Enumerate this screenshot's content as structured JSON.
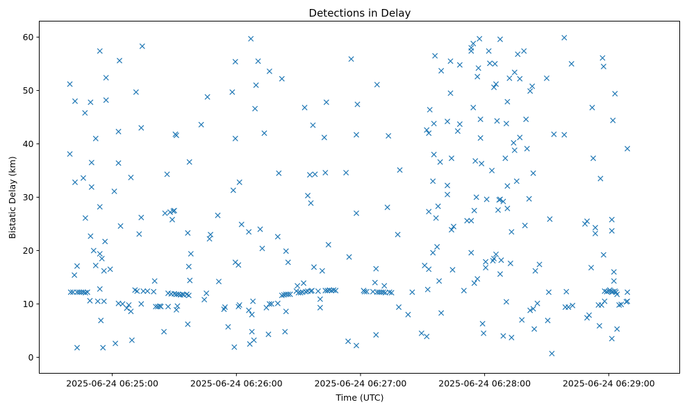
{
  "chart_data": {
    "type": "scatter",
    "title": "Detections in Delay",
    "xlabel": "Time (UTC)",
    "ylabel": "Bistatic Delay (km)",
    "marker": "x",
    "color": "#1f77b4",
    "x_unit": "seconds after 2025-06-24 06:24:00 UTC",
    "xlim": [
      -5.3,
      304.3
    ],
    "ylim": [
      -3.0,
      63.0
    ],
    "x_ticks": [
      {
        "value": 30,
        "label": "2025-06-24 06:25:00"
      },
      {
        "value": 90,
        "label": "2025-06-24 06:26:00"
      },
      {
        "value": 150,
        "label": "2025-06-24 06:27:00"
      },
      {
        "value": 210,
        "label": "2025-06-24 06:28:00"
      },
      {
        "value": 270,
        "label": "2025-06-24 06:29:00"
      }
    ],
    "y_ticks": [
      {
        "value": 0,
        "label": "0"
      },
      {
        "value": 10,
        "label": "10"
      },
      {
        "value": 20,
        "label": "20"
      },
      {
        "value": 30,
        "label": "30"
      },
      {
        "value": 40,
        "label": "40"
      },
      {
        "value": 50,
        "label": "50"
      },
      {
        "value": 60,
        "label": "60"
      }
    ],
    "points": [
      [
        9.5,
        51.2
      ],
      [
        9.5,
        38.1
      ],
      [
        9.9,
        12.2
      ],
      [
        11.0,
        12.2
      ],
      [
        11.7,
        15.4
      ],
      [
        12.0,
        32.8
      ],
      [
        12.0,
        48.0
      ],
      [
        13.0,
        12.2
      ],
      [
        13.0,
        1.8
      ],
      [
        13.0,
        17.1
      ],
      [
        14.0,
        12.2
      ],
      [
        15.0,
        12.2
      ],
      [
        16.0,
        33.6
      ],
      [
        16.0,
        12.2
      ],
      [
        16.8,
        45.8
      ],
      [
        17.0,
        26.1
      ],
      [
        17.0,
        12.1
      ],
      [
        18.0,
        12.2
      ],
      [
        19.2,
        10.6
      ],
      [
        19.5,
        47.8
      ],
      [
        19.5,
        22.7
      ],
      [
        20.0,
        36.5
      ],
      [
        20.0,
        31.9
      ],
      [
        21.0,
        20.0
      ],
      [
        22.0,
        41.0
      ],
      [
        22.0,
        17.2
      ],
      [
        23.0,
        10.5
      ],
      [
        24.0,
        57.4
      ],
      [
        24.0,
        28.2
      ],
      [
        24.0,
        19.4
      ],
      [
        24.0,
        12.8
      ],
      [
        24.5,
        6.9
      ],
      [
        25.0,
        18.5
      ],
      [
        25.5,
        1.8
      ],
      [
        26.0,
        10.5
      ],
      [
        26.0,
        16.2
      ],
      [
        26.5,
        21.7
      ],
      [
        27.0,
        52.4
      ],
      [
        27.0,
        48.2
      ],
      [
        29.0,
        16.5
      ],
      [
        31.0,
        31.1
      ],
      [
        31.5,
        2.6
      ],
      [
        33.0,
        42.3
      ],
      [
        33.0,
        36.4
      ],
      [
        33.0,
        10.1
      ],
      [
        33.5,
        55.6
      ],
      [
        34.0,
        24.6
      ],
      [
        35.0,
        10.0
      ],
      [
        37.0,
        9.2
      ],
      [
        38.0,
        9.8
      ],
      [
        39.0,
        33.7
      ],
      [
        39.0,
        8.6
      ],
      [
        39.5,
        3.2
      ],
      [
        41.0,
        12.6
      ],
      [
        41.5,
        49.7
      ],
      [
        42.0,
        12.4
      ],
      [
        43.0,
        23.1
      ],
      [
        44.0,
        43.0
      ],
      [
        44.0,
        26.2
      ],
      [
        44.0,
        10.0
      ],
      [
        44.5,
        58.3
      ],
      [
        45.0,
        12.4
      ],
      [
        47.0,
        12.4
      ],
      [
        50.0,
        12.3
      ],
      [
        50.5,
        14.3
      ],
      [
        51.0,
        9.5
      ],
      [
        52.0,
        9.5
      ],
      [
        53.0,
        9.6
      ],
      [
        53.5,
        9.5
      ],
      [
        55.0,
        4.8
      ],
      [
        55.5,
        27.0
      ],
      [
        56.5,
        34.3
      ],
      [
        57.0,
        9.5
      ],
      [
        57.0,
        12.0
      ],
      [
        58.0,
        27.2
      ],
      [
        58.5,
        11.9
      ],
      [
        59.0,
        25.8
      ],
      [
        59.5,
        27.4
      ],
      [
        60.0,
        11.9
      ],
      [
        60.0,
        27.5
      ],
      [
        60.5,
        41.8
      ],
      [
        61.0,
        41.6
      ],
      [
        61.0,
        8.9
      ],
      [
        61.0,
        11.8
      ],
      [
        61.5,
        9.6
      ],
      [
        62.0,
        11.8
      ],
      [
        63.0,
        11.7
      ],
      [
        64.0,
        11.8
      ],
      [
        64.5,
        11.7
      ],
      [
        66.0,
        11.8
      ],
      [
        66.5,
        23.3
      ],
      [
        66.5,
        6.2
      ],
      [
        67.0,
        11.6
      ],
      [
        67.0,
        17.0
      ],
      [
        67.3,
        36.6
      ],
      [
        67.5,
        14.4
      ],
      [
        68.0,
        19.4
      ],
      [
        73.0,
        43.6
      ],
      [
        74.5,
        10.8
      ],
      [
        75.5,
        12.0
      ],
      [
        76.0,
        48.8
      ],
      [
        77.0,
        22.2
      ],
      [
        77.5,
        23.0
      ],
      [
        81.0,
        26.6
      ],
      [
        81.5,
        14.2
      ],
      [
        84.0,
        9.0
      ],
      [
        84.5,
        9.4
      ],
      [
        86.0,
        5.7
      ],
      [
        88.0,
        49.7
      ],
      [
        88.5,
        31.3
      ],
      [
        89.0,
        1.9
      ],
      [
        89.5,
        55.4
      ],
      [
        89.5,
        41.0
      ],
      [
        89.5,
        17.8
      ],
      [
        91.0,
        9.5
      ],
      [
        91.0,
        17.3
      ],
      [
        91.5,
        32.8
      ],
      [
        91.5,
        9.8
      ],
      [
        92.5,
        24.9
      ],
      [
        96.0,
        8.8
      ],
      [
        96.0,
        23.5
      ],
      [
        96.5,
        2.5
      ],
      [
        97.0,
        59.7
      ],
      [
        97.5,
        4.8
      ],
      [
        97.5,
        8.0
      ],
      [
        98.0,
        10.5
      ],
      [
        98.5,
        3.2
      ],
      [
        99.5,
        51.0
      ],
      [
        99.0,
        46.6
      ],
      [
        100.5,
        55.5
      ],
      [
        101.5,
        24.0
      ],
      [
        102.5,
        20.4
      ],
      [
        103.5,
        42.0
      ],
      [
        104.5,
        9.3
      ],
      [
        105.5,
        4.3
      ],
      [
        106.0,
        10.0
      ],
      [
        107.0,
        10.0
      ],
      [
        106.0,
        53.6
      ],
      [
        110.0,
        22.6
      ],
      [
        110.0,
        10.1
      ],
      [
        110.5,
        34.5
      ],
      [
        112.0,
        11.6
      ],
      [
        112.0,
        52.2
      ],
      [
        113.0,
        11.7
      ],
      [
        113.5,
        4.8
      ],
      [
        114.0,
        8.6
      ],
      [
        114.0,
        11.8
      ],
      [
        114.0,
        19.9
      ],
      [
        115.0,
        17.8
      ],
      [
        115.0,
        11.8
      ],
      [
        116.0,
        11.8
      ],
      [
        119.0,
        12.4
      ],
      [
        119.5,
        13.4
      ],
      [
        120.0,
        12.1
      ],
      [
        121.0,
        12.1
      ],
      [
        122.0,
        12.2
      ],
      [
        122.5,
        13.9
      ],
      [
        123.0,
        46.8
      ],
      [
        123.5,
        12.3
      ],
      [
        124.5,
        12.4
      ],
      [
        124.5,
        30.3
      ],
      [
        125.5,
        34.2
      ],
      [
        126.0,
        12.4
      ],
      [
        126.0,
        28.9
      ],
      [
        126.5,
        12.5
      ],
      [
        127.0,
        43.5
      ],
      [
        127.5,
        16.9
      ],
      [
        128.0,
        34.3
      ],
      [
        129.5,
        12.4
      ],
      [
        130.5,
        10.9
      ],
      [
        130.5,
        9.3
      ],
      [
        131.5,
        16.2
      ],
      [
        132.5,
        41.2
      ],
      [
        133.0,
        12.5
      ],
      [
        133.5,
        47.8
      ],
      [
        133.0,
        34.6
      ],
      [
        134.0,
        12.5
      ],
      [
        135.0,
        12.6
      ],
      [
        134.5,
        21.1
      ],
      [
        136.0,
        12.5
      ],
      [
        137.0,
        12.6
      ],
      [
        138.0,
        12.5
      ],
      [
        143.0,
        34.6
      ],
      [
        144.0,
        3.0
      ],
      [
        144.5,
        18.8
      ],
      [
        145.5,
        55.9
      ],
      [
        148.0,
        27.0
      ],
      [
        148.0,
        2.2
      ],
      [
        148.0,
        41.7
      ],
      [
        148.5,
        47.4
      ],
      [
        151.5,
        12.5
      ],
      [
        152.0,
        12.3
      ],
      [
        153.0,
        12.3
      ],
      [
        156.0,
        12.3
      ],
      [
        157.0,
        14.0
      ],
      [
        157.5,
        4.2
      ],
      [
        157.5,
        16.6
      ],
      [
        158.0,
        12.2
      ],
      [
        159.0,
        12.2
      ],
      [
        160.0,
        12.2
      ],
      [
        158.0,
        51.1
      ],
      [
        161.0,
        12.2
      ],
      [
        161.5,
        13.4
      ],
      [
        162.0,
        12.1
      ],
      [
        163.0,
        28.1
      ],
      [
        163.5,
        41.5
      ],
      [
        164.0,
        12.2
      ],
      [
        165.0,
        12.1
      ],
      [
        168.0,
        23.0
      ],
      [
        168.5,
        9.4
      ],
      [
        169.0,
        35.1
      ],
      [
        173.0,
        8.0
      ],
      [
        175.0,
        12.2
      ],
      [
        179.5,
        4.5
      ],
      [
        181.0,
        17.2
      ],
      [
        182.0,
        3.9
      ],
      [
        182.5,
        12.7
      ],
      [
        182.0,
        42.6
      ],
      [
        183.0,
        27.3
      ],
      [
        183.0,
        16.5
      ],
      [
        183.0,
        42.0
      ],
      [
        183.5,
        46.4
      ],
      [
        185.0,
        33.0
      ],
      [
        185.0,
        19.6
      ],
      [
        185.5,
        43.8
      ],
      [
        185.5,
        38.0
      ],
      [
        186.0,
        56.5
      ],
      [
        186.5,
        26.1
      ],
      [
        187.0,
        20.7
      ],
      [
        187.5,
        28.3
      ],
      [
        188.0,
        14.3
      ],
      [
        188.5,
        36.6
      ],
      [
        189.0,
        8.3
      ],
      [
        189.0,
        53.7
      ],
      [
        192.0,
        44.2
      ],
      [
        192.0,
        32.2
      ],
      [
        192.0,
        30.5
      ],
      [
        193.5,
        55.5
      ],
      [
        193.5,
        49.5
      ],
      [
        194.0,
        37.3
      ],
      [
        194.0,
        23.9
      ],
      [
        194.5,
        16.4
      ],
      [
        195.0,
        24.5
      ],
      [
        197.0,
        42.4
      ],
      [
        198.0,
        54.8
      ],
      [
        198.0,
        43.7
      ],
      [
        200.0,
        12.5
      ],
      [
        201.5,
        25.6
      ],
      [
        203.5,
        58.0
      ],
      [
        203.5,
        57.4
      ],
      [
        203.5,
        25.6
      ],
      [
        203.5,
        19.6
      ],
      [
        204.5,
        46.8
      ],
      [
        204.5,
        58.8
      ],
      [
        205.0,
        13.9
      ],
      [
        205.0,
        27.5
      ],
      [
        205.5,
        36.8
      ],
      [
        206.0,
        30.0
      ],
      [
        206.5,
        14.7
      ],
      [
        206.5,
        52.6
      ],
      [
        207.0,
        54.2
      ],
      [
        207.5,
        59.7
      ],
      [
        208.0,
        44.6
      ],
      [
        208.0,
        41.1
      ],
      [
        208.5,
        36.3
      ],
      [
        209.0,
        6.3
      ],
      [
        209.5,
        4.5
      ],
      [
        210.5,
        17.9
      ],
      [
        210.5,
        16.8
      ],
      [
        211.0,
        29.6
      ],
      [
        212.0,
        57.4
      ],
      [
        212.5,
        55.1
      ],
      [
        213.5,
        35.0
      ],
      [
        214.0,
        18.1
      ],
      [
        214.5,
        50.6
      ],
      [
        214.5,
        18.5
      ],
      [
        215.0,
        55.0
      ],
      [
        215.5,
        19.3
      ],
      [
        215.5,
        51.2
      ],
      [
        216.0,
        44.3
      ],
      [
        216.5,
        27.6
      ],
      [
        217.0,
        29.5
      ],
      [
        217.5,
        59.6
      ],
      [
        217.5,
        29.6
      ],
      [
        217.5,
        15.6
      ],
      [
        218.0,
        18.2
      ],
      [
        219.0,
        4.0
      ],
      [
        219.0,
        29.2
      ],
      [
        220.0,
        37.3
      ],
      [
        220.5,
        43.8
      ],
      [
        220.5,
        10.4
      ],
      [
        221.0,
        47.9
      ],
      [
        221.0,
        32.1
      ],
      [
        221.0,
        27.9
      ],
      [
        222.0,
        52.3
      ],
      [
        222.5,
        17.6
      ],
      [
        223.0,
        3.7
      ],
      [
        223.0,
        23.5
      ],
      [
        224.0,
        40.2
      ],
      [
        224.5,
        53.4
      ],
      [
        224.5,
        38.8
      ],
      [
        225.5,
        33.0
      ],
      [
        226.0,
        56.8
      ],
      [
        227.0,
        52.2
      ],
      [
        227.0,
        41.2
      ],
      [
        228.0,
        7.0
      ],
      [
        229.0,
        57.4
      ],
      [
        229.5,
        24.7
      ],
      [
        230.0,
        44.6
      ],
      [
        230.5,
        39.1
      ],
      [
        231.5,
        29.7
      ],
      [
        232.0,
        8.8
      ],
      [
        232.0,
        49.9
      ],
      [
        233.5,
        9.1
      ],
      [
        233.0,
        50.8
      ],
      [
        233.5,
        34.5
      ],
      [
        234.0,
        5.3
      ],
      [
        234.5,
        16.2
      ],
      [
        235.5,
        10.1
      ],
      [
        236.5,
        17.4
      ],
      [
        240.0,
        52.3
      ],
      [
        240.5,
        6.9
      ],
      [
        241.0,
        12.2
      ],
      [
        241.5,
        25.9
      ],
      [
        242.5,
        0.7
      ],
      [
        243.5,
        41.8
      ],
      [
        248.5,
        59.9
      ],
      [
        248.5,
        41.7
      ],
      [
        249.0,
        9.4
      ],
      [
        249.5,
        12.3
      ],
      [
        250.5,
        9.4
      ],
      [
        252.0,
        55.0
      ],
      [
        252.5,
        9.7
      ],
      [
        258.5,
        25.0
      ],
      [
        259.5,
        7.4
      ],
      [
        259.5,
        25.5
      ],
      [
        260.5,
        7.9
      ],
      [
        261.5,
        16.8
      ],
      [
        262.0,
        46.8
      ],
      [
        262.5,
        37.3
      ],
      [
        263.5,
        24.3
      ],
      [
        263.5,
        23.2
      ],
      [
        265.0,
        9.8
      ],
      [
        265.5,
        5.9
      ],
      [
        266.0,
        33.5
      ],
      [
        266.5,
        9.8
      ],
      [
        267.0,
        56.1
      ],
      [
        267.5,
        19.2
      ],
      [
        267.5,
        54.5
      ],
      [
        268.0,
        12.4
      ],
      [
        268.0,
        10.5
      ],
      [
        269.0,
        12.3
      ],
      [
        270.0,
        12.4
      ],
      [
        270.5,
        12.6
      ],
      [
        271.0,
        12.4
      ],
      [
        271.5,
        12.2
      ],
      [
        271.5,
        25.8
      ],
      [
        271.5,
        23.7
      ],
      [
        272.0,
        12.3
      ],
      [
        271.5,
        3.5
      ],
      [
        272.0,
        44.4
      ],
      [
        272.5,
        14.3
      ],
      [
        272.5,
        16.0
      ],
      [
        273.0,
        12.4
      ],
      [
        273.0,
        49.4
      ],
      [
        273.5,
        12.2
      ],
      [
        274.0,
        5.3
      ],
      [
        274.0,
        11.8
      ],
      [
        275.0,
        9.8
      ],
      [
        276.0,
        9.9
      ],
      [
        278.5,
        10.4
      ],
      [
        279.0,
        10.5
      ],
      [
        279.0,
        12.2
      ],
      [
        279.0,
        39.1
      ]
    ]
  }
}
